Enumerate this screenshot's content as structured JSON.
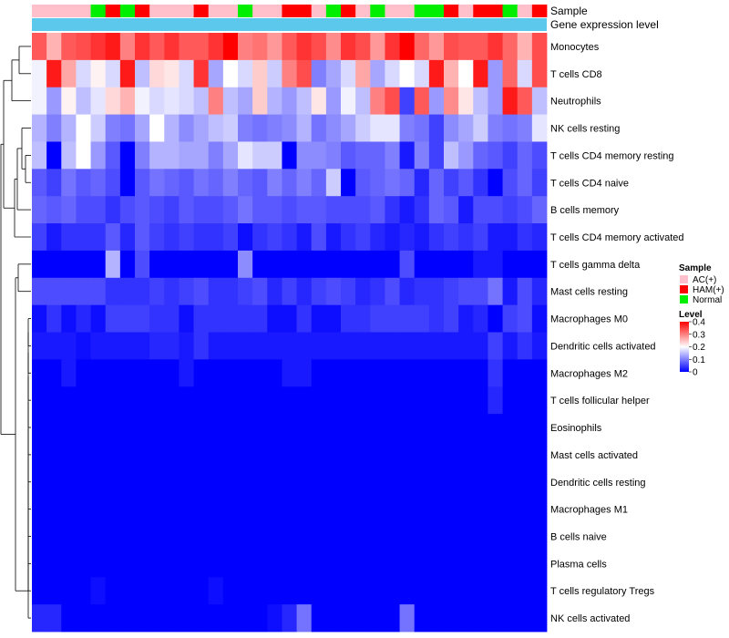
{
  "chart_data": {
    "type": "heatmap",
    "annotation_labels": [
      "Sample",
      "Gene expression level"
    ],
    "row_labels": [
      "Monocytes",
      "T cells CD8",
      "Neutrophils",
      "NK cells resting",
      "T cells CD4 memory resting",
      "T cells CD4 naive",
      "B cells memory",
      "T cells CD4 memory activated",
      "T cells gamma delta",
      "Mast cells resting",
      "Macrophages M0",
      "Dendritic cells activated",
      "Macrophages M2",
      "T cells follicular helper",
      "Eosinophils",
      "Mast cells activated",
      "Dendritic cells resting",
      "Macrophages M1",
      "B cells naive",
      "Plasma cells",
      "T cells regulatory  Tregs",
      "NK cells activated"
    ],
    "sample_groups": [
      "AC",
      "AC",
      "AC",
      "AC",
      "Normal",
      "HAM",
      "Normal",
      "HAM",
      "AC",
      "AC",
      "AC",
      "HAM",
      "AC",
      "AC",
      "Normal",
      "AC",
      "AC",
      "HAM",
      "HAM",
      "AC",
      "Normal",
      "HAM",
      "AC",
      "Normal",
      "AC",
      "AC",
      "Normal",
      "Normal",
      "HAM",
      "AC",
      "HAM",
      "HAM",
      "Normal",
      "AC",
      "HAM"
    ],
    "values": [
      [
        0.33,
        0.26,
        0.33,
        0.34,
        0.36,
        0.38,
        0.3,
        0.36,
        0.33,
        0.36,
        0.33,
        0.33,
        0.36,
        0.41,
        0.3,
        0.31,
        0.28,
        0.33,
        0.36,
        0.34,
        0.29,
        0.36,
        0.34,
        0.28,
        0.36,
        0.41,
        0.32,
        0.28,
        0.34,
        0.33,
        0.33,
        0.36,
        0.32,
        0.26,
        0.34
      ],
      [
        0.19,
        0.38,
        0.27,
        0.17,
        0.21,
        0.17,
        0.38,
        0.15,
        0.23,
        0.22,
        0.17,
        0.36,
        0.13,
        0.2,
        0.17,
        0.24,
        0.16,
        0.3,
        0.34,
        0.1,
        0.13,
        0.17,
        0.27,
        0.13,
        0.17,
        0.2,
        0.17,
        0.38,
        0.26,
        0.2,
        0.38,
        0.12,
        0.32,
        0.17,
        0.34
      ],
      [
        0.19,
        0.12,
        0.21,
        0.15,
        0.18,
        0.23,
        0.26,
        0.19,
        0.17,
        0.18,
        0.17,
        0.15,
        0.3,
        0.15,
        0.13,
        0.24,
        0.14,
        0.12,
        0.15,
        0.22,
        0.12,
        0.19,
        0.15,
        0.3,
        0.34,
        0.05,
        0.33,
        0.12,
        0.29,
        0.22,
        0.15,
        0.12,
        0.38,
        0.33,
        0.15
      ],
      [
        0.14,
        0.1,
        0.14,
        0.2,
        0.16,
        0.1,
        0.09,
        0.13,
        0.2,
        0.14,
        0.11,
        0.13,
        0.15,
        0.16,
        0.1,
        0.09,
        0.1,
        0.11,
        0.14,
        0.09,
        0.11,
        0.13,
        0.16,
        0.18,
        0.18,
        0.1,
        0.09,
        0.05,
        0.11,
        0.13,
        0.16,
        0.1,
        0.09,
        0.1,
        0.18
      ],
      [
        0.15,
        0.0,
        0.15,
        0.2,
        0.12,
        0.07,
        0.0,
        0.1,
        0.14,
        0.14,
        0.13,
        0.13,
        0.1,
        0.13,
        0.18,
        0.16,
        0.16,
        0.0,
        0.11,
        0.11,
        0.1,
        0.07,
        0.08,
        0.08,
        0.1,
        0.02,
        0.1,
        0.05,
        0.15,
        0.12,
        0.08,
        0.07,
        0.05,
        0.08,
        0.06
      ],
      [
        0.07,
        0.05,
        0.09,
        0.07,
        0.08,
        0.06,
        0.0,
        0.07,
        0.09,
        0.08,
        0.07,
        0.09,
        0.08,
        0.1,
        0.08,
        0.07,
        0.1,
        0.08,
        0.1,
        0.08,
        0.16,
        0.0,
        0.07,
        0.08,
        0.09,
        0.08,
        0.03,
        0.08,
        0.05,
        0.07,
        0.04,
        0.0,
        0.06,
        0.08,
        0.05
      ],
      [
        0.08,
        0.07,
        0.08,
        0.06,
        0.06,
        0.04,
        0.06,
        0.07,
        0.06,
        0.05,
        0.07,
        0.06,
        0.06,
        0.07,
        0.09,
        0.07,
        0.07,
        0.06,
        0.07,
        0.07,
        0.06,
        0.06,
        0.06,
        0.07,
        0.04,
        0.02,
        0.04,
        0.08,
        0.07,
        0.02,
        0.06,
        0.06,
        0.05,
        0.06,
        0.08
      ],
      [
        0.05,
        0.02,
        0.04,
        0.04,
        0.04,
        0.07,
        0.03,
        0.07,
        0.05,
        0.04,
        0.05,
        0.04,
        0.04,
        0.05,
        0.01,
        0.04,
        0.05,
        0.04,
        0.02,
        0.06,
        0.02,
        0.04,
        0.05,
        0.03,
        0.02,
        0.03,
        0.02,
        0.04,
        0.05,
        0.04,
        0.05,
        0.02,
        0.02,
        0.04,
        0.03
      ],
      [
        0.0,
        0.0,
        0.0,
        0.0,
        0.0,
        0.14,
        0.0,
        0.06,
        0.0,
        0.0,
        0.0,
        0.0,
        0.0,
        0.0,
        0.11,
        0.0,
        0.0,
        0.0,
        0.0,
        0.0,
        0.0,
        0.0,
        0.0,
        0.0,
        0.0,
        0.06,
        0.0,
        0.0,
        0.0,
        0.0,
        0.02,
        0.02,
        0.0,
        0.0,
        0.0
      ],
      [
        0.06,
        0.06,
        0.06,
        0.06,
        0.06,
        0.04,
        0.04,
        0.04,
        0.05,
        0.04,
        0.05,
        0.06,
        0.04,
        0.04,
        0.05,
        0.06,
        0.03,
        0.05,
        0.03,
        0.05,
        0.06,
        0.05,
        0.03,
        0.04,
        0.06,
        0.03,
        0.04,
        0.04,
        0.05,
        0.06,
        0.06,
        0.09,
        0.02,
        0.06,
        0.03
      ],
      [
        0.01,
        0.04,
        0.01,
        0.03,
        0.01,
        0.05,
        0.05,
        0.05,
        0.04,
        0.04,
        0.01,
        0.04,
        0.04,
        0.04,
        0.04,
        0.04,
        0.01,
        0.01,
        0.04,
        0.01,
        0.01,
        0.04,
        0.04,
        0.05,
        0.05,
        0.05,
        0.05,
        0.04,
        0.05,
        0.02,
        0.03,
        0.0,
        0.05,
        0.06,
        0.01
      ],
      [
        0.02,
        0.02,
        0.02,
        0.01,
        0.02,
        0.02,
        0.02,
        0.02,
        0.03,
        0.03,
        0.02,
        0.04,
        0.02,
        0.02,
        0.02,
        0.02,
        0.02,
        0.02,
        0.02,
        0.02,
        0.02,
        0.02,
        0.02,
        0.02,
        0.02,
        0.02,
        0.02,
        0.02,
        0.02,
        0.02,
        0.02,
        0.05,
        0.02,
        0.04,
        0.02
      ],
      [
        0.0,
        0.0,
        0.02,
        0.0,
        0.0,
        0.0,
        0.0,
        0.0,
        0.0,
        0.0,
        0.02,
        0.0,
        0.0,
        0.0,
        0.0,
        0.0,
        0.0,
        0.02,
        0.02,
        0.0,
        0.0,
        0.0,
        0.0,
        0.0,
        0.0,
        0.0,
        0.0,
        0.0,
        0.0,
        0.0,
        0.0,
        0.04,
        0.0,
        0.0,
        0.0
      ],
      [
        0.0,
        0.0,
        0.0,
        0.0,
        0.0,
        0.0,
        0.0,
        0.0,
        0.0,
        0.0,
        0.0,
        0.0,
        0.0,
        0.0,
        0.0,
        0.0,
        0.0,
        0.0,
        0.0,
        0.0,
        0.0,
        0.0,
        0.0,
        0.0,
        0.0,
        0.0,
        0.0,
        0.0,
        0.0,
        0.0,
        0.0,
        0.03,
        0.0,
        0.0,
        0.0
      ],
      [
        0,
        0,
        0,
        0,
        0,
        0,
        0,
        0,
        0,
        0,
        0,
        0,
        0,
        0,
        0,
        0,
        0,
        0,
        0,
        0,
        0,
        0,
        0,
        0,
        0,
        0,
        0,
        0,
        0,
        0,
        0,
        0,
        0,
        0,
        0
      ],
      [
        0,
        0,
        0,
        0,
        0,
        0,
        0,
        0,
        0,
        0,
        0,
        0,
        0,
        0,
        0,
        0,
        0,
        0,
        0,
        0,
        0,
        0,
        0,
        0,
        0,
        0,
        0,
        0,
        0,
        0,
        0,
        0,
        0,
        0,
        0
      ],
      [
        0,
        0,
        0,
        0,
        0,
        0,
        0,
        0,
        0,
        0,
        0,
        0,
        0,
        0,
        0,
        0,
        0,
        0,
        0,
        0,
        0,
        0,
        0,
        0,
        0,
        0,
        0,
        0,
        0,
        0,
        0,
        0,
        0,
        0,
        0
      ],
      [
        0,
        0,
        0,
        0,
        0,
        0,
        0,
        0,
        0,
        0,
        0,
        0,
        0,
        0,
        0,
        0,
        0,
        0,
        0,
        0,
        0,
        0,
        0,
        0,
        0,
        0,
        0,
        0,
        0,
        0,
        0,
        0,
        0,
        0,
        0
      ],
      [
        0,
        0,
        0,
        0,
        0,
        0,
        0,
        0,
        0,
        0,
        0,
        0,
        0,
        0,
        0,
        0,
        0,
        0,
        0,
        0,
        0,
        0,
        0,
        0,
        0,
        0,
        0,
        0,
        0,
        0,
        0,
        0,
        0,
        0,
        0
      ],
      [
        0,
        0,
        0,
        0,
        0,
        0,
        0,
        0,
        0,
        0,
        0,
        0,
        0,
        0,
        0,
        0,
        0,
        0,
        0,
        0,
        0,
        0,
        0,
        0,
        0,
        0,
        0,
        0,
        0,
        0,
        0,
        0,
        0,
        0,
        0
      ],
      [
        0.0,
        0.0,
        0.0,
        0.0,
        0.01,
        0.0,
        0.0,
        0.0,
        0.0,
        0.0,
        0.0,
        0.0,
        0.01,
        0.0,
        0.0,
        0.0,
        0.0,
        0.0,
        0.0,
        0.0,
        0.0,
        0.0,
        0.0,
        0.0,
        0.0,
        0.0,
        0.0,
        0.0,
        0.0,
        0.0,
        0.0,
        0.0,
        0.0,
        0.0,
        0.0
      ],
      [
        0.03,
        0.03,
        0.0,
        0.0,
        0.0,
        0.0,
        0.0,
        0.0,
        0.0,
        0.0,
        0.0,
        0.0,
        0.0,
        0.0,
        0.0,
        0.0,
        0.01,
        0.03,
        0.09,
        0.0,
        0.0,
        0.0,
        0.0,
        0.0,
        0.0,
        0.09,
        0.0,
        0.0,
        0.0,
        0.0,
        0.0,
        0.0,
        0.0,
        0.0,
        0.0
      ]
    ],
    "legend_sample": {
      "title": "Sample",
      "items": [
        {
          "label": "AC(+)",
          "color": "#ffc0cb"
        },
        {
          "label": "HAM(+)",
          "color": "#ff0000"
        },
        {
          "label": "Normal",
          "color": "#00ee00"
        }
      ]
    },
    "legend_level": {
      "title": "Level",
      "ticks": [
        "0.4",
        "0.3",
        "0.2",
        "0.1",
        "0"
      ],
      "tick_values": [
        0.4,
        0.3,
        0.2,
        0.1,
        0
      ]
    },
    "color_scale": {
      "low": "#0000ff",
      "mid": "#ffffff",
      "high": "#ff0000",
      "min": 0,
      "mid_value": 0.2,
      "max": 0.4
    },
    "group_colors": {
      "AC": "#ffc0cb",
      "HAM": "#ff0000",
      "Normal": "#00ee00"
    },
    "expression_bar_color": "#5bc8ec",
    "dendrogram_color": "#000000"
  }
}
